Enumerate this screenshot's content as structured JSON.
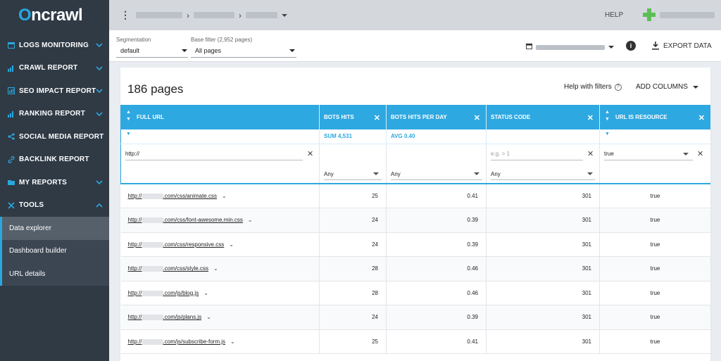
{
  "app": {
    "logo": "Oncrawl"
  },
  "sidebar": {
    "items": [
      {
        "label": "LOGS MONITORING",
        "icon": "calendar-icon",
        "expand": "chevron-down-icon"
      },
      {
        "label": "CRAWL REPORT",
        "icon": "bar-chart-icon",
        "expand": "chevron-down-icon"
      },
      {
        "label": "SEO IMPACT REPORT",
        "icon": "grid-icon",
        "expand": "chevron-down-icon"
      },
      {
        "label": "RANKING REPORT",
        "icon": "bar-chart-icon",
        "expand": "chevron-down-icon"
      },
      {
        "label": "SOCIAL MEDIA REPORT",
        "icon": "share-icon",
        "expand": null
      },
      {
        "label": "BACKLINK REPORT",
        "icon": "link-icon",
        "expand": null
      },
      {
        "label": "MY REPORTS",
        "icon": "folder-icon",
        "expand": "chevron-down-icon"
      },
      {
        "label": "TOOLS",
        "icon": "tools-icon",
        "expand": "chevron-up-icon"
      }
    ],
    "subitems": [
      {
        "label": "Data explorer",
        "active": true
      },
      {
        "label": "Dashboard builder",
        "active": false
      },
      {
        "label": "URL details",
        "active": false
      }
    ]
  },
  "topbar": {
    "help": "HELP"
  },
  "filterbar": {
    "segmentation_label": "Segmentation",
    "segmentation_value": "default",
    "basefilter_label": "Base filter (2,952 pages)",
    "basefilter_value": "All pages",
    "export_label": "EXPORT DATA"
  },
  "main": {
    "title": "186 pages",
    "help_filters": "Help with filters",
    "add_columns": "ADD COLUMNS"
  },
  "table": {
    "columns": [
      "FULL URL",
      "BOTS HITS",
      "BOTS HITS PER DAY",
      "STATUS CODE",
      "URL IS RESOURCE"
    ],
    "aggregates": {
      "bots_hits": "SUM  4,531",
      "bots_hits_per_day": "AVG  0.40"
    },
    "filters": {
      "url_value": "http://",
      "bots_hits": "Any",
      "bots_hits_per_day": "Any",
      "status_placeholder": "e.g. > 1",
      "status_select": "Any",
      "resource_value": "true"
    },
    "rows": [
      {
        "url_prefix": "http://",
        "url_path": ".com/css/animate.css",
        "bots_hits": "25",
        "per_day": "0.41",
        "status": "301",
        "resource": "true"
      },
      {
        "url_prefix": "http://",
        "url_path": ".com/css/font-awesome.min.css",
        "bots_hits": "24",
        "per_day": "0.39",
        "status": "301",
        "resource": "true"
      },
      {
        "url_prefix": "http://",
        "url_path": ".com/css/responsive.css",
        "bots_hits": "24",
        "per_day": "0.39",
        "status": "301",
        "resource": "true"
      },
      {
        "url_prefix": "http://",
        "url_path": ".com/css/style.css",
        "bots_hits": "28",
        "per_day": "0.46",
        "status": "301",
        "resource": "true"
      },
      {
        "url_prefix": "http://",
        "url_path": ".com/js/blog.js",
        "bots_hits": "28",
        "per_day": "0.46",
        "status": "301",
        "resource": "true"
      },
      {
        "url_prefix": "http://",
        "url_path": ".com/js/plans.js",
        "bots_hits": "24",
        "per_day": "0.39",
        "status": "301",
        "resource": "true"
      },
      {
        "url_prefix": "http://",
        "url_path": ".com/js/subscribe-form.js",
        "bots_hits": "25",
        "per_day": "0.41",
        "status": "301",
        "resource": "true"
      }
    ]
  },
  "colors": {
    "accent": "#2ea8e1",
    "sidebar": "#2f3a45",
    "topbar": "#d4d8dd"
  }
}
